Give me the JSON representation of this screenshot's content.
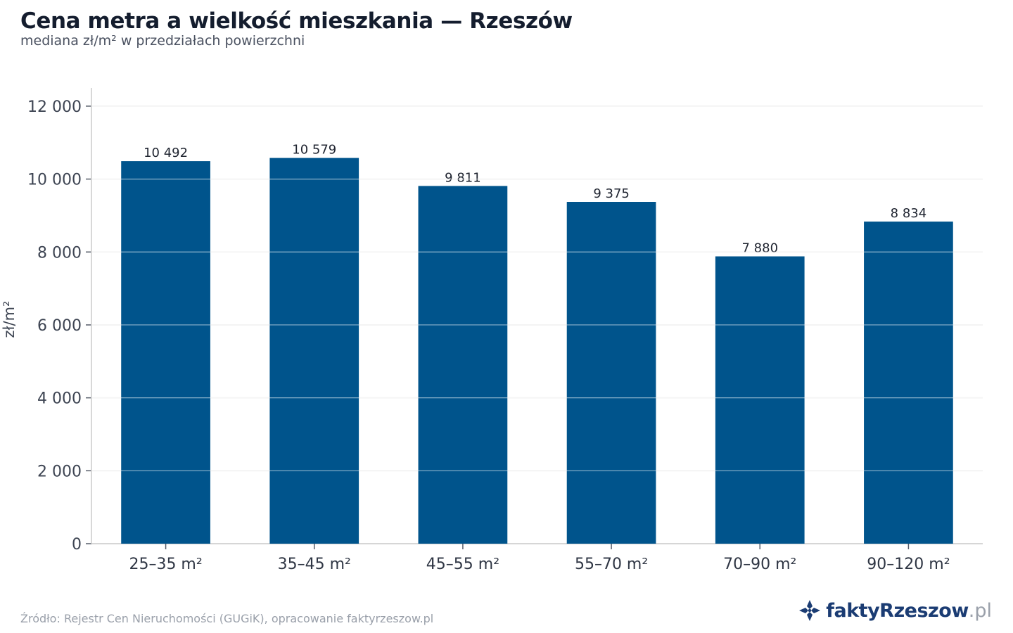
{
  "header": {
    "title": "Cena metra a wielkość mieszkania — Rzeszów",
    "subtitle": "mediana zł/m² w przedziałach powierzchni"
  },
  "footer": {
    "source": "Źródło: Rejestr Cen Nieruchomości (GUGiK), opracowanie faktyrzeszow.pl",
    "brand_name": "faktyRzeszow",
    "brand_tld": ".pl"
  },
  "colors": {
    "bar": "#00548c",
    "grid": "#e6e6e6",
    "axis": "#cccccc",
    "brand": "#1b3c73"
  },
  "chart_data": {
    "type": "bar",
    "title": "Cena metra a wielkość mieszkania — Rzeszów",
    "subtitle": "mediana zł/m² w przedziałach powierzchni",
    "xlabel": "",
    "ylabel": "zł/m²",
    "categories": [
      "25–35 m²",
      "35–45 m²",
      "45–55 m²",
      "55–70 m²",
      "70–90 m²",
      "90–120 m²"
    ],
    "values": [
      10492,
      10579,
      9811,
      9375,
      7880,
      8834
    ],
    "value_labels": [
      "10 492",
      "10 579",
      "9 811",
      "9 375",
      "7 880",
      "8 834"
    ],
    "yticks": [
      0,
      2000,
      4000,
      6000,
      8000,
      10000,
      12000
    ],
    "ytick_labels": [
      "0",
      "2 000",
      "4 000",
      "6 000",
      "8 000",
      "10 000",
      "12 000"
    ],
    "ylim": [
      0,
      12500
    ],
    "grid": true,
    "legend": "none"
  }
}
